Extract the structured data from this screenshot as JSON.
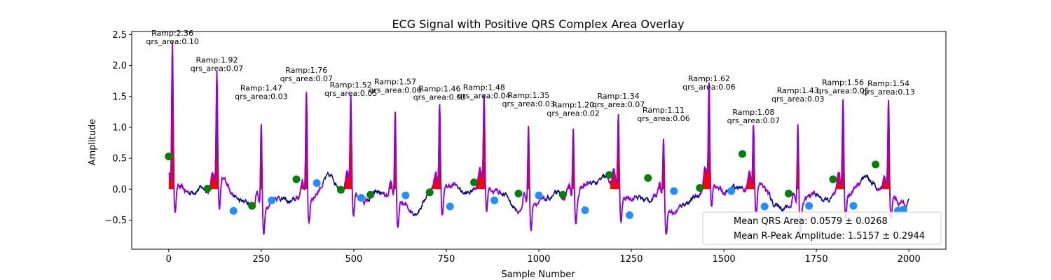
{
  "chart_data": {
    "type": "line",
    "title": "ECG Signal with Positive QRS Complex Area Overlay",
    "xlabel": "Sample Number",
    "ylabel": "Amplitude",
    "xlim": [
      -100,
      2100
    ],
    "ylim": [
      -0.97,
      2.55
    ],
    "xticks": [
      0,
      250,
      500,
      750,
      1000,
      1250,
      1500,
      1750,
      2000
    ],
    "yticks": [
      -0.5,
      0.0,
      0.5,
      1.0,
      1.5,
      2.0,
      2.5
    ],
    "xtick_labels": [
      "0",
      "250",
      "500",
      "750",
      "1000",
      "1250",
      "1500",
      "1750",
      "2000"
    ],
    "ytick_labels": [
      "−0.5",
      "0.0",
      "0.5",
      "1.0",
      "1.5",
      "2.0",
      "2.5"
    ],
    "grid": false,
    "legend_position": "lower-right",
    "legend": [
      "Mean QRS Area: 0.0579 ± 0.0268",
      "Mean R-Peak Amplitude: 1.5157 ± 0.2944"
    ],
    "colors": {
      "signal": "#00008b",
      "qrs_segment": "#9400d3",
      "area_fill": "#ff0000",
      "onset_marker": "#008000",
      "offset_marker": "#1e90ff"
    },
    "beats": [
      {
        "r_x": 10,
        "r_amp": 2.36,
        "area": 0.1,
        "r_label": "Ramp:2.36",
        "area_label": "qrs_area:0.10",
        "onset_x": 0,
        "onset_y": 0.53,
        "offset_x": 175,
        "offset_y": -0.35
      },
      {
        "r_x": 130,
        "r_amp": 1.92,
        "area": 0.07,
        "r_label": "Ramp:1.92",
        "area_label": "qrs_area:0.07",
        "onset_x": 105,
        "onset_y": 0.01,
        "offset_x": 278,
        "offset_y": -0.18
      },
      {
        "r_x": 250,
        "r_amp": 1.47,
        "area": 0.03,
        "r_label": "Ramp:1.47",
        "area_label": "qrs_area:0.03",
        "onset_x": 225,
        "onset_y": -0.27,
        "offset_x": 400,
        "offset_y": 0.1
      },
      {
        "r_x": 372,
        "r_amp": 1.76,
        "area": 0.07,
        "r_label": "Ramp:1.76",
        "area_label": "qrs_area:0.07",
        "onset_x": 345,
        "onset_y": 0.16,
        "offset_x": 520,
        "offset_y": -0.14
      },
      {
        "r_x": 492,
        "r_amp": 1.52,
        "area": 0.05,
        "r_label": "Ramp:1.52",
        "area_label": "qrs_area:0.05",
        "onset_x": 465,
        "onset_y": -0.01,
        "offset_x": 640,
        "offset_y": -0.1
      },
      {
        "r_x": 612,
        "r_amp": 1.57,
        "area": 0.06,
        "r_label": "Ramp:1.57",
        "area_label": "qrs_area:0.06",
        "onset_x": 545,
        "onset_y": -0.09,
        "offset_x": 760,
        "offset_y": -0.28
      },
      {
        "r_x": 732,
        "r_amp": 1.46,
        "area": 0.03,
        "r_label": "Ramp:1.46",
        "area_label": "qrs_area:0.03",
        "onset_x": 705,
        "onset_y": -0.05,
        "offset_x": 880,
        "offset_y": -0.18
      },
      {
        "r_x": 852,
        "r_amp": 1.48,
        "area": 0.04,
        "r_label": "Ramp:1.48",
        "area_label": "qrs_area:0.04",
        "onset_x": 825,
        "onset_y": 0.11,
        "offset_x": 1000,
        "offset_y": -0.1
      },
      {
        "r_x": 972,
        "r_amp": 1.35,
        "area": 0.03,
        "r_label": "Ramp:1.35",
        "area_label": "qrs_area:0.03",
        "onset_x": 945,
        "onset_y": -0.07,
        "offset_x": 1125,
        "offset_y": -0.34
      },
      {
        "r_x": 1093,
        "r_amp": 1.2,
        "area": 0.02,
        "r_label": "Ramp:1.20",
        "area_label": "qrs_area:0.02",
        "onset_x": 1065,
        "onset_y": -0.09,
        "offset_x": 1245,
        "offset_y": -0.42
      },
      {
        "r_x": 1215,
        "r_amp": 1.34,
        "area": 0.07,
        "r_label": "Ramp:1.34",
        "area_label": "qrs_area:0.07",
        "onset_x": 1190,
        "onset_y": 0.23,
        "offset_x": 1365,
        "offset_y": -0.03
      },
      {
        "r_x": 1337,
        "r_amp": 1.11,
        "area": 0.06,
        "r_label": "Ramp:1.11",
        "area_label": "qrs_area:0.06",
        "onset_x": 1295,
        "onset_y": 0.18,
        "offset_x": 1520,
        "offset_y": -0.03
      },
      {
        "r_x": 1460,
        "r_amp": 1.62,
        "area": 0.06,
        "r_label": "Ramp:1.62",
        "area_label": "qrs_area:0.06",
        "onset_x": 1435,
        "onset_y": 0.02,
        "offset_x": 1610,
        "offset_y": -0.28
      },
      {
        "r_x": 1580,
        "r_amp": 1.08,
        "area": 0.07,
        "r_label": "Ramp:1.08",
        "area_label": "qrs_area:0.07",
        "onset_x": 1550,
        "onset_y": 0.57,
        "offset_x": 1730,
        "offset_y": -0.27
      },
      {
        "r_x": 1700,
        "r_amp": 1.43,
        "area": 0.03,
        "r_label": "Ramp:1.43",
        "area_label": "qrs_area:0.03",
        "onset_x": 1675,
        "onset_y": -0.07,
        "offset_x": 1850,
        "offset_y": -0.27
      },
      {
        "r_x": 1822,
        "r_amp": 1.56,
        "area": 0.05,
        "r_label": "Ramp:1.56",
        "area_label": "qrs_area:0.05",
        "onset_x": 1795,
        "onset_y": 0.16,
        "offset_x": 1970,
        "offset_y": -0.35
      },
      {
        "r_x": 1945,
        "r_amp": 1.54,
        "area": 0.13,
        "r_label": "Ramp:1.54",
        "area_label": "qrs_area:0.13",
        "onset_x": 1910,
        "onset_y": 0.4,
        "offset_x": 1985,
        "offset_y": -0.33
      }
    ]
  }
}
